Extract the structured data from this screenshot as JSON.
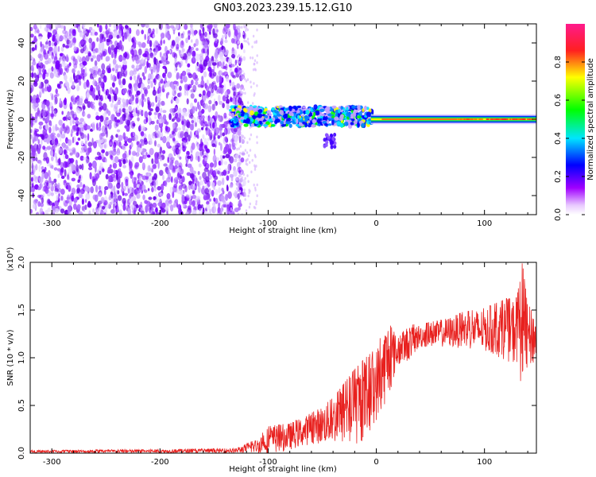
{
  "figure": {
    "title": "GN03.2023.239.15.12.G10"
  },
  "chart_data": [
    {
      "type": "heatmap",
      "xlabel": "Height of straight line (km)",
      "ylabel": "Frequency (Hz)",
      "xlim": [
        -320,
        148
      ],
      "ylim": [
        -50,
        50
      ],
      "x_ticks": [
        -300,
        -200,
        -100,
        0,
        100
      ],
      "y_ticks": [
        -40,
        -20,
        0,
        20,
        40
      ],
      "colorbar": {
        "label": "Normalized spectral amplitude",
        "range": [
          0,
          1
        ],
        "ticks": [
          "0.0",
          "0.2",
          "0.4",
          "0.6",
          "0.8"
        ],
        "colors": [
          "#ffffff",
          "#a000ff",
          "#0000ff",
          "#00e5ff",
          "#00ff00",
          "#ffff00",
          "#ff2020",
          "#ff1a8c"
        ]
      },
      "regions": [
        {
          "x_range": [
            -320,
            -122
          ],
          "freq_range": [
            -50,
            50
          ],
          "amplitude": "0.0-0.2",
          "description_key": "broadband noise"
        },
        {
          "x_range": [
            -135,
            -5
          ],
          "freq_center": 1.5,
          "freq_halfwidth": 5,
          "amplitude": "0.2-0.6"
        },
        {
          "x_range": [
            -5,
            148
          ],
          "freq_center": 0,
          "freq_halfwidth": 2.5,
          "amplitude": "0.6-1.0"
        }
      ]
    },
    {
      "type": "line",
      "xlabel": "Height of straight line (km)",
      "ylabel": "SNR (10 * v/v)",
      "y_multiplier": "(x10⁴)",
      "xlim": [
        -320,
        148
      ],
      "ylim": [
        0,
        2.0
      ],
      "x_ticks": [
        -300,
        -200,
        -100,
        0,
        100
      ],
      "y_ticks": [
        "0.0",
        "0.5",
        "1.0",
        "1.5",
        "2.0"
      ],
      "color": "#e8201e",
      "series_envelope": {
        "x": [
          -320,
          -200,
          -130,
          -110,
          -100,
          -80,
          -60,
          -40,
          -20,
          -10,
          0,
          10,
          20,
          30,
          40,
          60,
          80,
          100,
          120,
          130,
          135,
          140,
          148
        ],
        "y_mean": [
          0.012,
          0.012,
          0.02,
          0.07,
          0.12,
          0.17,
          0.25,
          0.33,
          0.45,
          0.55,
          0.7,
          0.95,
          1.05,
          1.15,
          1.22,
          1.25,
          1.28,
          1.28,
          1.28,
          1.25,
          1.3,
          1.2,
          1.2
        ],
        "y_peak": [
          0.03,
          0.04,
          0.05,
          0.15,
          0.28,
          0.32,
          0.42,
          0.58,
          0.88,
          1.0,
          1.1,
          1.4,
          1.2,
          1.35,
          1.35,
          1.4,
          1.48,
          1.52,
          1.62,
          1.63,
          2.0,
          1.55,
          1.5
        ]
      }
    }
  ]
}
